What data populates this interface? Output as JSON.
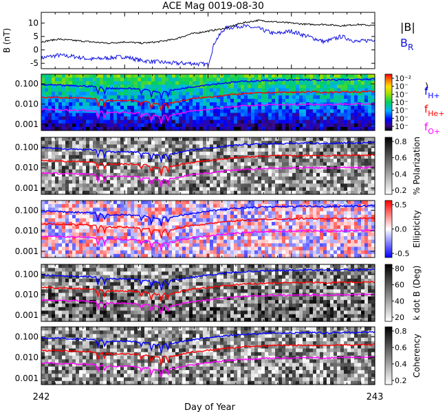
{
  "title": "ACE Mag 0019-08-30",
  "xlabel": "Day of Year",
  "xticks": [
    "242",
    "243"
  ],
  "colors": {
    "btotal": "#000000",
    "br": "#1010e0",
    "fH": "#0000ff",
    "fHe": "#ff0000",
    "fO": "#ff00ff",
    "plot_bg": "#ffffff"
  },
  "panels": [
    {
      "id": "mag",
      "ylabel": "B (nT)",
      "yticks": [
        "10",
        "5",
        "0",
        "-5"
      ],
      "legend": [
        {
          "text": "|B|"
        },
        {
          "text": "B",
          "sub": "R"
        }
      ]
    },
    {
      "id": "power",
      "ylabel": "",
      "yticks": [
        "0.100",
        "0.010",
        "0.001"
      ],
      "colorbar": {
        "ticks": [
          "10⁻²",
          "10⁻",
          "10⁻",
          "10⁻",
          "10⁻",
          "10⁻",
          "10⁻"
        ],
        "label": ")",
        "colormap": "rainbow"
      },
      "legend": [
        {
          "text": "f",
          "sub": "H+"
        },
        {
          "text": "f",
          "sub": "He+"
        },
        {
          "text": "f",
          "sub": "O+"
        }
      ]
    },
    {
      "id": "polarization",
      "ylabel": "",
      "yticks": [
        "0.100",
        "0.010",
        "0.001"
      ],
      "colorbar": {
        "ticks": [
          "0.8",
          "0.6",
          "0.4",
          "0.2"
        ],
        "label": "% Polarization",
        "colormap": "gray"
      }
    },
    {
      "id": "ellipticity",
      "ylabel": "",
      "yticks": [
        "0.100",
        "0.010",
        "0.001"
      ],
      "colorbar": {
        "ticks": [
          "0.5",
          "0.0",
          "-0.5"
        ],
        "label": "Ellipticity",
        "colormap": "bwr"
      }
    },
    {
      "id": "kdotb",
      "ylabel": "",
      "yticks": [
        "0.100",
        "0.010",
        "0.001"
      ],
      "colorbar": {
        "ticks": [
          "80",
          "60",
          "40",
          "20"
        ],
        "label": "k dot B (Deg)",
        "colormap": "gray"
      }
    },
    {
      "id": "coherency",
      "ylabel": "",
      "yticks": [
        "0.100",
        "0.010",
        "0.001"
      ],
      "colorbar": {
        "ticks": [
          "0.8",
          "0.6",
          "0.4",
          "0.2"
        ],
        "label": "Coherency",
        "colormap": "gray"
      }
    }
  ],
  "chart_data": [
    {
      "type": "line",
      "panel": "mag",
      "xlim": [
        242,
        243
      ],
      "ylim": [
        -7,
        14
      ],
      "series": [
        {
          "name": "|B|",
          "x": [
            242.0,
            242.05,
            242.1,
            242.15,
            242.2,
            242.25,
            242.3,
            242.35,
            242.4,
            242.45,
            242.5,
            242.55,
            242.6,
            242.65,
            242.7,
            242.75,
            242.8,
            242.85,
            242.9,
            242.95,
            243.0
          ],
          "y": [
            3,
            4,
            3.5,
            3,
            2.5,
            3,
            2.5,
            3,
            4,
            6,
            7,
            8,
            10,
            11,
            10.5,
            10,
            9.5,
            9.5,
            9,
            9.5,
            9
          ]
        },
        {
          "name": "B",
          "x": [
            242.0,
            242.05,
            242.1,
            242.15,
            242.2,
            242.25,
            242.3,
            242.35,
            242.4,
            242.45,
            242.5,
            242.52,
            242.55,
            242.6,
            242.65,
            242.7,
            242.75,
            242.8,
            242.85,
            242.9,
            242.95,
            243.0
          ],
          "y": [
            -3,
            -2,
            -2.5,
            -3.5,
            -3,
            -2.5,
            -4,
            -4.5,
            -5,
            -5,
            -5.5,
            3,
            8,
            9,
            8,
            6,
            7,
            5,
            3,
            5,
            3,
            4
          ]
        }
      ]
    },
    {
      "type": "heatmap",
      "panel": "power",
      "ylim": [
        0.0005,
        0.3
      ],
      "yscale": "log",
      "series": [
        {
          "name": "f",
          "x": [
            242.0,
            242.05,
            242.1,
            242.15,
            242.2,
            242.25,
            242.3,
            242.35,
            242.4,
            242.45,
            242.5,
            242.55,
            242.6,
            242.65,
            242.7,
            242.75,
            242.8,
            242.85,
            242.9,
            242.95,
            243.0
          ],
          "y": [
            0.09,
            0.085,
            0.08,
            0.075,
            0.06,
            0.06,
            0.055,
            0.04,
            0.05,
            0.07,
            0.09,
            0.11,
            0.13,
            0.14,
            0.15,
            0.15,
            0.16,
            0.15,
            0.16,
            0.16,
            0.17
          ]
        },
        {
          "name": "f",
          "x": [
            242.0,
            242.05,
            242.1,
            242.15,
            242.2,
            242.25,
            242.3,
            242.35,
            242.4,
            242.45,
            242.5,
            242.55,
            242.6,
            242.65,
            242.7,
            242.75,
            242.8,
            242.85,
            242.9,
            242.95,
            243.0
          ],
          "y": [
            0.022,
            0.021,
            0.02,
            0.019,
            0.015,
            0.015,
            0.014,
            0.01,
            0.012,
            0.018,
            0.022,
            0.027,
            0.032,
            0.035,
            0.038,
            0.038,
            0.04,
            0.038,
            0.04,
            0.04,
            0.042
          ]
        },
        {
          "name": "f",
          "x": [
            242.0,
            242.05,
            242.1,
            242.15,
            242.2,
            242.25,
            242.3,
            242.35,
            242.4,
            242.45,
            242.5,
            242.55,
            242.6,
            242.65,
            242.7,
            242.75,
            242.8,
            242.85,
            242.9,
            242.95,
            243.0
          ],
          "y": [
            0.0055,
            0.0052,
            0.005,
            0.0047,
            0.0038,
            0.0038,
            0.0035,
            0.0025,
            0.003,
            0.0045,
            0.0055,
            0.0068,
            0.008,
            0.0088,
            0.0094,
            0.0094,
            0.01,
            0.0094,
            0.01,
            0.01,
            0.0105
          ]
        }
      ]
    }
  ]
}
